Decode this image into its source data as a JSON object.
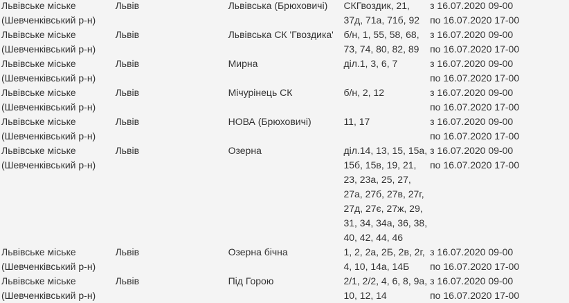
{
  "rows": [
    {
      "district": [
        "Львівське міське",
        "(Шевченківський р-н)"
      ],
      "city": "Львів",
      "street": "Львівська (Брюховичі)",
      "houses": [
        "СКГвоздик, 21,",
        "37д, 71а, 71б, 92"
      ],
      "time": [
        "з 16.07.2020 09-00",
        "по 16.07.2020 17-00"
      ]
    },
    {
      "district": [
        "Львівське міське",
        "(Шевченківський р-н)"
      ],
      "city": "Львів",
      "street": "Львівська СК 'Гвоздика'",
      "houses": [
        "б/н, 1, 55, 58, 68,",
        "73, 74, 80, 82, 89"
      ],
      "time": [
        "з 16.07.2020 09-00",
        "по 16.07.2020 17-00"
      ]
    },
    {
      "district": [
        "Львівське міське",
        "(Шевченківський р-н)"
      ],
      "city": "Львів",
      "street": "Мирна",
      "houses": [
        "діл.1, 3, 6, 7"
      ],
      "time": [
        "з 16.07.2020 09-00",
        "по 16.07.2020 17-00"
      ]
    },
    {
      "district": [
        "Львівське міське",
        "(Шевченківський р-н)"
      ],
      "city": "Львів",
      "street": "Мічурінець СК",
      "houses": [
        "б/н, 2, 12"
      ],
      "time": [
        "з 16.07.2020 09-00",
        "по 16.07.2020 17-00"
      ]
    },
    {
      "district": [
        "Львівське міське",
        "(Шевченківський р-н)"
      ],
      "city": "Львів",
      "street": "НОВА (Брюховичі)",
      "houses": [
        "11, 17"
      ],
      "time": [
        "з 16.07.2020 09-00",
        "по 16.07.2020 17-00"
      ]
    },
    {
      "district": [
        "Львівське міське",
        "(Шевченківський р-н)"
      ],
      "city": "Львів",
      "street": "Озерна",
      "houses": [
        "діл.14, 13, 15, 15а,",
        "15б, 15в, 19, 21,",
        "23, 23а, 25, 27,",
        "27а, 27б, 27в, 27г,",
        "27д, 27є, 27ж, 29,",
        "31, 34, 34а, 36, 38,",
        "40, 42, 44, 46"
      ],
      "time": [
        "з 16.07.2020 09-00",
        "по 16.07.2020 17-00"
      ]
    },
    {
      "district": [
        "Львівське міське",
        "(Шевченківський р-н)"
      ],
      "city": "Львів",
      "street": "Озерна бічна",
      "houses": [
        "1, 2, 2а, 2Б, 2в, 2г,",
        "4, 10, 14а, 14Б"
      ],
      "time": [
        "з 16.07.2020 09-00",
        "по 16.07.2020 17-00"
      ]
    },
    {
      "district": [
        "Львівське міське",
        "(Шевченківський р-н)"
      ],
      "city": "Львів",
      "street": "Під Горою",
      "houses": [
        "2/1, 2/2, 4, 6, 8, 9а,",
        "10, 12, 14"
      ],
      "time": [
        "з 16.07.2020 09-00",
        "по 16.07.2020 17-00"
      ]
    }
  ]
}
